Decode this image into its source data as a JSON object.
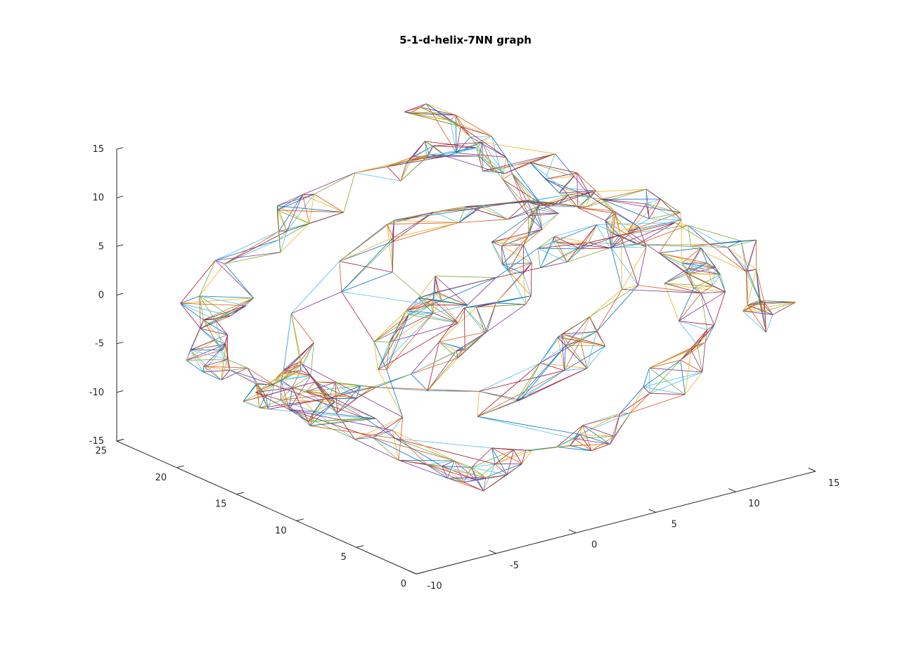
{
  "chart_data": {
    "type": "graph3d",
    "title": "5-1-d-helix-7NN graph",
    "xlabel": "",
    "ylabel": "",
    "zlabel": "",
    "xlim": [
      -10,
      15
    ],
    "ylim": [
      0,
      25
    ],
    "zlim": [
      -15,
      15
    ],
    "x_ticks": [
      "-10",
      "-5",
      "0",
      "5",
      "10",
      "15"
    ],
    "y_ticks": [
      "0",
      "5",
      "10",
      "15",
      "20",
      "25"
    ],
    "z_ticks": [
      "-15",
      "-10",
      "-5",
      "0",
      "5",
      "10",
      "15"
    ],
    "grid": false,
    "edge_colors": [
      "#0072bd",
      "#d95319",
      "#edb120",
      "#7e2f8e",
      "#77ac30",
      "#4dbeee",
      "#a2142f"
    ],
    "curve": {
      "shape": "helix",
      "radius": 12,
      "turns": 3.2,
      "y_range": [
        1.5,
        23.5
      ],
      "nodes": 300,
      "neighbors": 7
    }
  }
}
